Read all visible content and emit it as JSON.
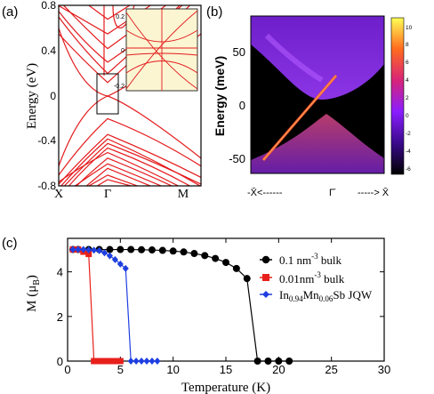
{
  "panel_a": {
    "label": "(a)",
    "ylabel": "Energy (eV)",
    "yticks": [
      "0.8",
      "0.4",
      "0",
      "-0.4",
      "-0.8"
    ],
    "xticks": [
      "X",
      "Γ",
      "M"
    ],
    "inset_yticks": [
      "0.2",
      "0",
      "-0.2"
    ],
    "colors": {
      "bands": "#e41a1c",
      "inset_bg": "#fbf5d2",
      "axis": "#000000"
    }
  },
  "panel_b": {
    "label": "(b)",
    "ylabel": "Energy (meV)",
    "yticks": [
      "50",
      "0",
      "-50"
    ],
    "xlabel_left": "-X̄<------",
    "xlabel_center": "Γ̄",
    "xlabel_right": "-----> X̄",
    "colorbar_ticks": [
      "10",
      "8",
      "6",
      "4",
      "2",
      "0",
      "-2",
      "-4",
      "-6"
    ],
    "colors": {
      "bulk": "#8a1dff",
      "gap": "#000000",
      "surface": "#ff4a2c"
    }
  },
  "panel_c": {
    "label": "(c)",
    "chart_data": {
      "type": "line",
      "xlabel": "Temperature (K)",
      "ylabel": "M (μB)",
      "xlim": [
        0,
        30
      ],
      "ylim": [
        0,
        5.5
      ],
      "xticks": [
        "0",
        "5",
        "10",
        "15",
        "20",
        "25",
        "30"
      ],
      "yticks": [
        "0",
        "2",
        "4"
      ],
      "legend_position": "top-right",
      "series": [
        {
          "name": "0.1 nm⁻³ bulk",
          "color": "#000000",
          "marker": "circle",
          "x": [
            0.5,
            1,
            2,
            3,
            4,
            5,
            6,
            7,
            8,
            9,
            10,
            11,
            12,
            13,
            14,
            15,
            16,
            17,
            18,
            19,
            20,
            21
          ],
          "y": [
            5.0,
            5.0,
            5.0,
            5.0,
            5.0,
            5.0,
            5.0,
            4.99,
            4.98,
            4.96,
            4.93,
            4.89,
            4.82,
            4.73,
            4.6,
            4.42,
            4.15,
            3.7,
            0,
            0,
            0,
            0
          ]
        },
        {
          "name": "0.01nm⁻³ bulk",
          "color": "#e8201b",
          "marker": "square",
          "x": [
            0.5,
            1.0,
            1.5,
            2.0,
            2.5,
            3.0,
            3.5,
            4.0,
            4.5,
            5.0
          ],
          "y": [
            5.0,
            5.0,
            4.9,
            4.8,
            0,
            0,
            0,
            0,
            0,
            0
          ]
        },
        {
          "name": "In0.94Mn0.06Sb JQW",
          "color": "#1f3fe0",
          "marker": "diamond",
          "x": [
            0.5,
            1,
            1.5,
            2,
            2.5,
            3,
            3.5,
            4,
            4.5,
            5,
            5.5,
            6,
            6.5,
            7,
            7.5,
            8,
            8.5
          ],
          "y": [
            5.0,
            5.0,
            5.0,
            4.98,
            4.97,
            4.95,
            4.85,
            4.72,
            4.55,
            4.35,
            4.15,
            0,
            0,
            0,
            0,
            0,
            0
          ]
        }
      ],
      "legend": [
        {
          "name": "0.1 nm",
          "sup": "-3",
          "tail": " bulk"
        },
        {
          "name": "0.01nm",
          "sup": "-3",
          "tail": " bulk"
        },
        {
          "name": "In",
          "sub1": "0.94",
          "mid": "Mn",
          "sub2": "0.06",
          "tail": "Sb JQW"
        }
      ]
    }
  }
}
